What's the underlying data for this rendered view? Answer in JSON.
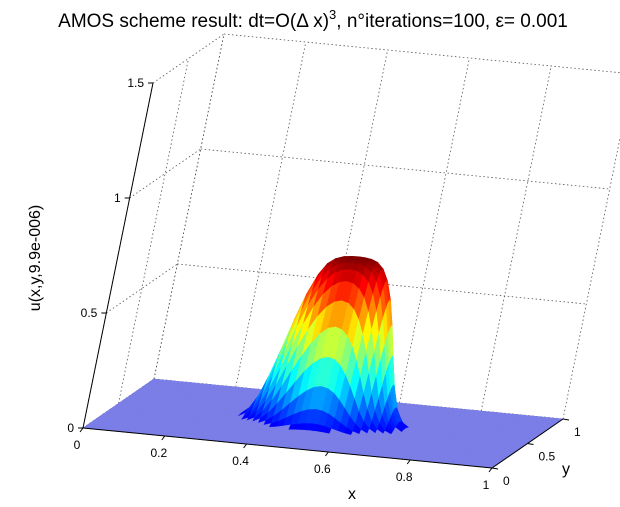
{
  "chart_data": {
    "type": "surface",
    "title": {
      "prefix": "AMOS scheme result: dt=O(",
      "delta": "Δ",
      "x_part": " x)",
      "exponent": "3",
      "suffix": ", n°iterations=100, ",
      "epsilon": "ε",
      "eps_value": "= 0.001"
    },
    "xlabel": "x",
    "ylabel": "y",
    "zlabel": "u(x,y,9.9e-006)",
    "xlim": [
      0,
      1
    ],
    "ylim": [
      0,
      1
    ],
    "zlim": [
      0,
      1.5
    ],
    "x_ticks": [
      "0",
      "0.2",
      "0.4",
      "0.6",
      "0.8",
      "1"
    ],
    "y_ticks": [
      "0",
      "0.5",
      "1"
    ],
    "z_ticks": [
      "0",
      "0.5",
      "1",
      "1.5"
    ],
    "grid": true,
    "colormap": "jet",
    "surface": {
      "function": "super-gaussian bump on flat base",
      "base_level": 0.0,
      "peak_value": 0.72,
      "center_x": 0.5,
      "center_y": 0.5,
      "width": 0.14
    }
  }
}
